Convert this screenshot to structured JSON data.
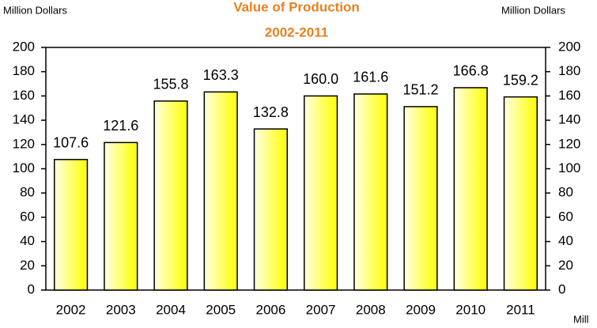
{
  "chart_data": {
    "type": "bar",
    "title": "Value of Production",
    "subtitle": "2002-2011",
    "y_label": "Million Dollars",
    "y2_label": "Million Dollars",
    "annotation": "Mill",
    "categories": [
      "2002",
      "2003",
      "2004",
      "2005",
      "2006",
      "2007",
      "2008",
      "2009",
      "2010",
      "2011"
    ],
    "values": [
      107.6,
      121.6,
      155.8,
      163.3,
      132.8,
      160.0,
      161.6,
      151.2,
      166.8,
      159.2
    ],
    "value_labels": [
      "107.6",
      "121.6",
      "155.8",
      "163.3",
      "132.8",
      "160.0",
      "161.6",
      "151.2",
      "166.8",
      "159.2"
    ],
    "color": "#ffff00",
    "ylim": [
      0,
      200
    ],
    "yticks": [
      0,
      20,
      40,
      60,
      80,
      100,
      120,
      140,
      160,
      180,
      200
    ],
    "y2lim": [
      0,
      200
    ],
    "y2ticks": [
      0,
      20,
      40,
      60,
      80,
      100,
      120,
      140,
      160,
      180,
      200
    ],
    "grid": false
  }
}
